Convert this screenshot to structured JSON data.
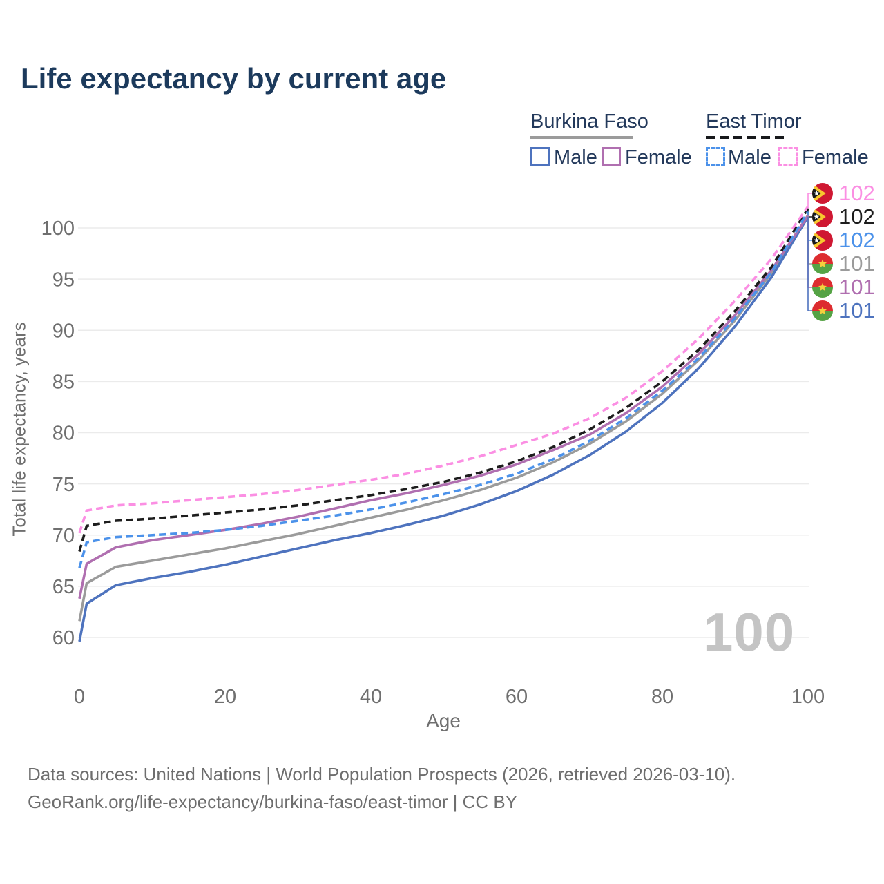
{
  "title": "Life expectancy by current age",
  "watermark_age": "100",
  "legend": {
    "groups": [
      {
        "label": "Burkina Faso",
        "line_style": "solid",
        "line_color": "#9b9b9b",
        "items": [
          {
            "label": "Male",
            "color": "#4e73be",
            "box_style": "solid"
          },
          {
            "label": "Female",
            "color": "#b06fb0",
            "box_style": "solid"
          }
        ]
      },
      {
        "label": "East Timor",
        "line_style": "dashed",
        "line_color": "#17191c",
        "items": [
          {
            "label": "Male",
            "color": "#4c92ea",
            "box_style": "dashed"
          },
          {
            "label": "Female",
            "color": "#fb8fe3",
            "box_style": "dashed"
          }
        ]
      }
    ]
  },
  "end_labels": [
    {
      "value": "102",
      "color": "#fb8fe3",
      "flag": "east-timor",
      "series": "et-female"
    },
    {
      "value": "102",
      "color": "#1d1d1d",
      "flag": "east-timor",
      "series": "et-total"
    },
    {
      "value": "102",
      "color": "#4c92ea",
      "flag": "east-timor",
      "series": "et-male"
    },
    {
      "value": "101",
      "color": "#9b9b9b",
      "flag": "burkina-faso",
      "series": "bf-total"
    },
    {
      "value": "101",
      "color": "#b06fb0",
      "flag": "burkina-faso",
      "series": "bf-female"
    },
    {
      "value": "101",
      "color": "#4e73be",
      "flag": "burkina-faso",
      "series": "bf-male"
    }
  ],
  "flag_colors": {
    "burkina_faso": {
      "red": "#dd2c2f",
      "green": "#55a345",
      "yellow": "#f5cf3e"
    },
    "east_timor": {
      "red": "#cf1832",
      "yellow": "#f8c82e",
      "black": "#17191c",
      "white": "#ffffff"
    }
  },
  "footer": {
    "line1": "Data sources: United Nations | World Population Prospects (2026, retrieved 2026-03-10).",
    "line2": "GeoRank.org/life-expectancy/burkina-faso/east-timor | CC BY"
  },
  "chart_data": {
    "type": "line",
    "title": "Life expectancy by current age",
    "xlabel": "Age",
    "ylabel": "Total life expectancy, years",
    "x_ticks": [
      0,
      20,
      40,
      60,
      80,
      100
    ],
    "y_ticks": [
      60,
      65,
      70,
      75,
      80,
      85,
      90,
      95,
      100
    ],
    "xlim": [
      0,
      100
    ],
    "ylim": [
      58.5,
      103
    ],
    "grid": "horizontal",
    "legend_position": "top-right",
    "ages": [
      0,
      1,
      5,
      10,
      15,
      20,
      25,
      30,
      35,
      40,
      45,
      50,
      55,
      60,
      65,
      70,
      75,
      80,
      85,
      90,
      95,
      100
    ],
    "series": [
      {
        "key": "bf-total",
        "name": "Burkina Faso Total",
        "country": "Burkina Faso",
        "sex": "Total",
        "style": "solid",
        "color": "#9b9b9b",
        "end_label": "101",
        "values": [
          61.6,
          65.3,
          66.9,
          67.5,
          68.1,
          68.7,
          69.4,
          70.1,
          70.9,
          71.7,
          72.5,
          73.4,
          74.4,
          75.6,
          77.1,
          78.9,
          81.1,
          83.8,
          87.1,
          91.0,
          95.6,
          101.25
        ]
      },
      {
        "key": "bf-male",
        "name": "Burkina Faso Male",
        "country": "Burkina Faso",
        "sex": "Male",
        "style": "solid",
        "color": "#4e73be",
        "end_label": "101",
        "values": [
          59.6,
          63.3,
          65.1,
          65.8,
          66.4,
          67.1,
          67.9,
          68.7,
          69.5,
          70.2,
          71.0,
          71.9,
          73.0,
          74.3,
          75.9,
          77.8,
          80.1,
          82.9,
          86.3,
          90.4,
          95.2,
          101.1
        ]
      },
      {
        "key": "bf-female",
        "name": "Burkina Faso Female",
        "country": "Burkina Faso",
        "sex": "Female",
        "style": "solid",
        "color": "#b06fb0",
        "end_label": "101",
        "values": [
          63.8,
          67.2,
          68.8,
          69.5,
          70.0,
          70.5,
          71.1,
          71.8,
          72.6,
          73.4,
          74.1,
          74.9,
          75.8,
          76.9,
          78.3,
          79.8,
          81.9,
          84.5,
          87.7,
          91.5,
          95.9,
          101.2
        ]
      },
      {
        "key": "et-total",
        "name": "East Timor Total",
        "country": "East Timor",
        "sex": "Total",
        "style": "dashed",
        "color": "#1d1d1d",
        "end_label": "102",
        "values": [
          68.4,
          70.9,
          71.4,
          71.6,
          71.9,
          72.2,
          72.5,
          72.9,
          73.4,
          73.9,
          74.5,
          75.2,
          76.1,
          77.2,
          78.6,
          80.3,
          82.4,
          85.0,
          88.1,
          91.9,
          96.2,
          101.9
        ]
      },
      {
        "key": "et-male",
        "name": "East Timor Male",
        "country": "East Timor",
        "sex": "Male",
        "style": "dashed",
        "color": "#4c92ea",
        "end_label": "102",
        "values": [
          66.8,
          69.3,
          69.8,
          70.0,
          70.2,
          70.5,
          70.9,
          71.4,
          71.9,
          72.5,
          73.2,
          74.0,
          74.9,
          76.0,
          77.4,
          79.2,
          81.4,
          84.1,
          87.3,
          91.2,
          95.7,
          101.6
        ]
      },
      {
        "key": "et-female",
        "name": "East Timor Female",
        "country": "East Timor",
        "sex": "Female",
        "style": "dashed",
        "color": "#fb8fe3",
        "end_label": "102",
        "values": [
          70.2,
          72.4,
          72.9,
          73.1,
          73.4,
          73.7,
          74.0,
          74.4,
          74.9,
          75.4,
          76.0,
          76.8,
          77.7,
          78.8,
          79.9,
          81.4,
          83.4,
          86.0,
          89.2,
          92.9,
          97.0,
          102.1
        ]
      }
    ]
  }
}
